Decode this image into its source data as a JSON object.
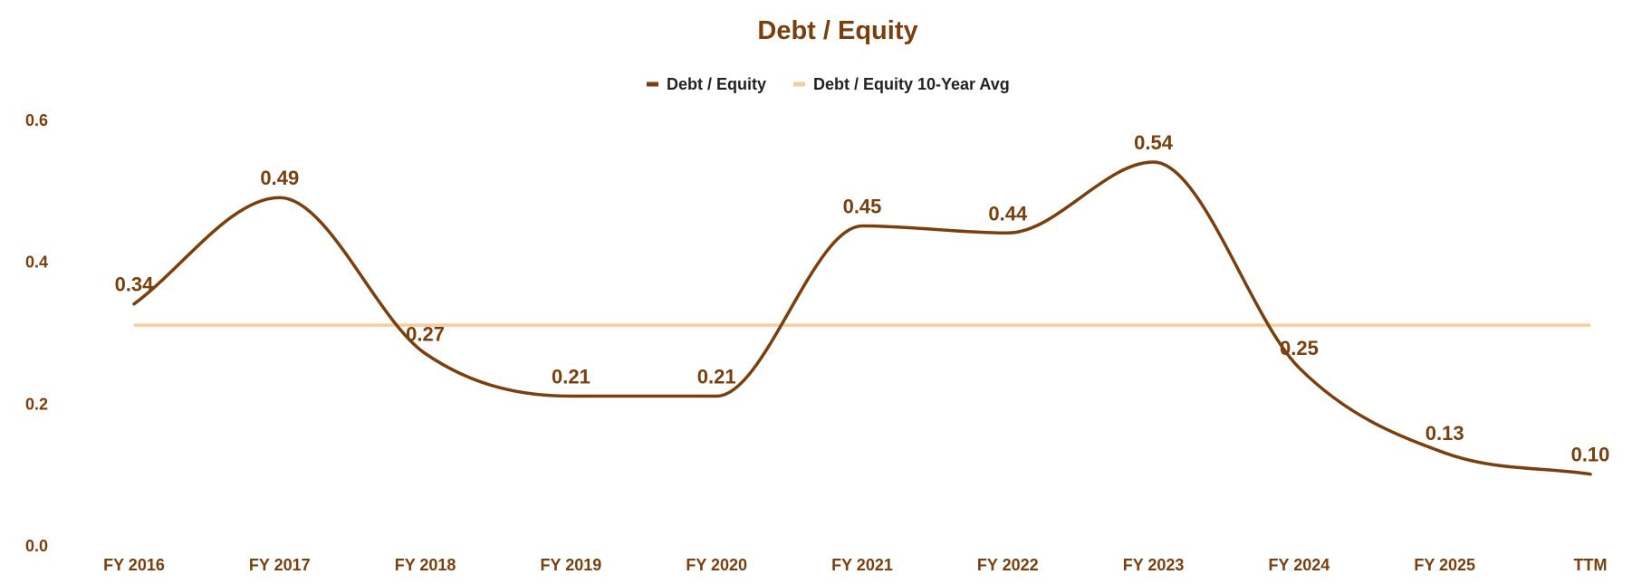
{
  "chart_data": {
    "type": "line",
    "title": "Debt / Equity",
    "categories": [
      "FY 2016",
      "FY 2017",
      "FY 2018",
      "FY 2019",
      "FY 2020",
      "FY 2021",
      "FY 2022",
      "FY 2023",
      "FY 2024",
      "FY 2025",
      "TTM"
    ],
    "series": [
      {
        "name": "Debt / Equity",
        "values": [
          0.34,
          0.49,
          0.27,
          0.21,
          0.21,
          0.45,
          0.44,
          0.54,
          0.25,
          0.13,
          0.1
        ],
        "labels": [
          "0.34",
          "0.49",
          "0.27",
          "0.21",
          "0.21",
          "0.45",
          "0.44",
          "0.54",
          "0.25",
          "0.13",
          "0.10"
        ],
        "color": "#7a3f0c",
        "smooth": true
      },
      {
        "name": "Debt / Equity 10-Year Avg",
        "value": 0.31,
        "color": "#f7cd9e"
      }
    ],
    "y_ticks": [
      "0.0",
      "0.2",
      "0.4",
      "0.6"
    ],
    "ylim": [
      0,
      0.6
    ],
    "grid": false,
    "legend_position": "top-center",
    "title_color": "#7a3f0c",
    "label_color": "#7a3f0c"
  }
}
